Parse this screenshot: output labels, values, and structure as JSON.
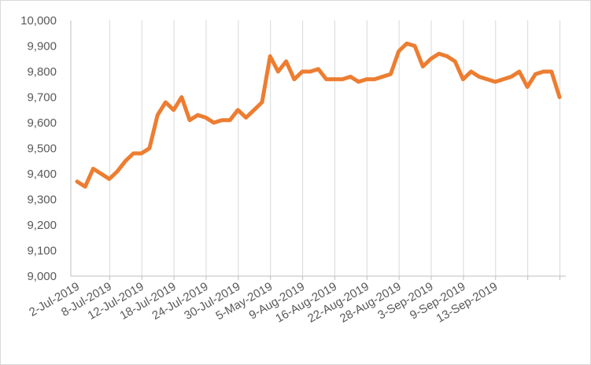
{
  "chart_data": {
    "type": "line",
    "title": "",
    "xlabel": "",
    "ylabel": "",
    "ylim": [
      9000,
      10000
    ],
    "y_ticks": [
      "9,000",
      "9,100",
      "9,200",
      "9,300",
      "9,400",
      "9,500",
      "9,600",
      "9,700",
      "9,800",
      "9,900",
      "10,000"
    ],
    "y_tick_values": [
      9000,
      9100,
      9200,
      9300,
      9400,
      9500,
      9600,
      9700,
      9800,
      9900,
      10000
    ],
    "x_tick_labels": [
      "2-Jul-2019",
      "8-Jul-2019",
      "12-Jul-2019",
      "18-Jul-2019",
      "24-Jul-2019",
      "30-Jul-2019",
      "5-May-2019",
      "9-Aug-2019",
      "16-Aug-2019",
      "22-Aug-2019",
      "28-Aug-2019",
      "3-Sep-2019",
      "9-Sep-2019",
      "13-Sep-2019"
    ],
    "x_tick_label_index": [
      0,
      4,
      8,
      12,
      16,
      20,
      24,
      28,
      32,
      36,
      40,
      44,
      48,
      52
    ],
    "x_gridline_index": [
      4,
      8,
      12,
      16,
      20,
      24,
      28,
      32,
      36,
      40,
      44,
      48,
      52,
      56,
      60
    ],
    "grid": "vertical",
    "legend": "none",
    "color": "#ED7D31",
    "series": [
      {
        "values": [
          9370,
          9350,
          9420,
          9400,
          9380,
          9410,
          9450,
          9480,
          9480,
          9500,
          9630,
          9680,
          9650,
          9700,
          9610,
          9630,
          9620,
          9600,
          9610,
          9610,
          9650,
          9620,
          9650,
          9680,
          9860,
          9800,
          9840,
          9770,
          9800,
          9800,
          9810,
          9770,
          9770,
          9770,
          9780,
          9760,
          9770,
          9770,
          9780,
          9790,
          9880,
          9910,
          9900,
          9820,
          9850,
          9870,
          9860,
          9840,
          9770,
          9800,
          9780,
          9770,
          9760,
          9770,
          9780,
          9800,
          9740,
          9790,
          9800,
          9800,
          9700
        ]
      }
    ]
  }
}
